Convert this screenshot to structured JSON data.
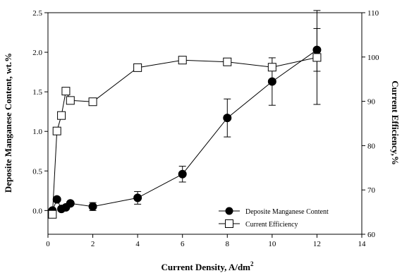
{
  "chart_data": {
    "type": "scatter",
    "xlabel": "Current Density, A/dm",
    "xlabel_superscript": "2",
    "ylabel_left": "Deposite Manganese Content,  wt.%",
    "ylabel_right": "Current Efficiency,%",
    "xlim": [
      0,
      14
    ],
    "ylim_left": [
      -0.3,
      2.5
    ],
    "ylim_right": [
      60,
      110
    ],
    "x_ticks": [
      0,
      2,
      4,
      6,
      8,
      10,
      12,
      14
    ],
    "y_left_ticks": [
      0.0,
      0.5,
      1.0,
      1.5,
      2.0,
      2.5
    ],
    "y_left_tick_labels": [
      "0.0",
      "0.5",
      "1.0",
      "1.5",
      "2.0",
      "2.5"
    ],
    "y_right_ticks": [
      60,
      70,
      80,
      90,
      100,
      110
    ],
    "grid": false,
    "legend_position": "bottom-right",
    "series": [
      {
        "name": "Deposite Manganese Content",
        "axis": "left",
        "marker": "filled-circle",
        "color": "#000000",
        "x": [
          0.2,
          0.4,
          0.6,
          0.8,
          1.0,
          2.0,
          4.0,
          6.0,
          8.0,
          10.0,
          12.0
        ],
        "y": [
          0.0,
          0.14,
          0.02,
          0.04,
          0.09,
          0.05,
          0.16,
          0.46,
          1.17,
          1.63,
          2.03
        ],
        "err": [
          0,
          0,
          0,
          0,
          0,
          0.05,
          0.08,
          0.1,
          0.24,
          0.3,
          0.27
        ]
      },
      {
        "name": "Current Efficiency",
        "axis": "right",
        "marker": "open-square",
        "color": "#000000",
        "x": [
          0.2,
          0.4,
          0.6,
          0.8,
          1.0,
          2.0,
          4.0,
          6.0,
          8.0,
          10.0,
          12.0
        ],
        "y": [
          64.5,
          83.3,
          86.8,
          92.3,
          90.2,
          89.9,
          97.6,
          99.3,
          98.9,
          97.7,
          99.9
        ],
        "err": [
          0,
          0,
          0,
          0,
          0,
          0,
          0,
          0,
          0,
          0,
          10.6
        ]
      }
    ]
  }
}
